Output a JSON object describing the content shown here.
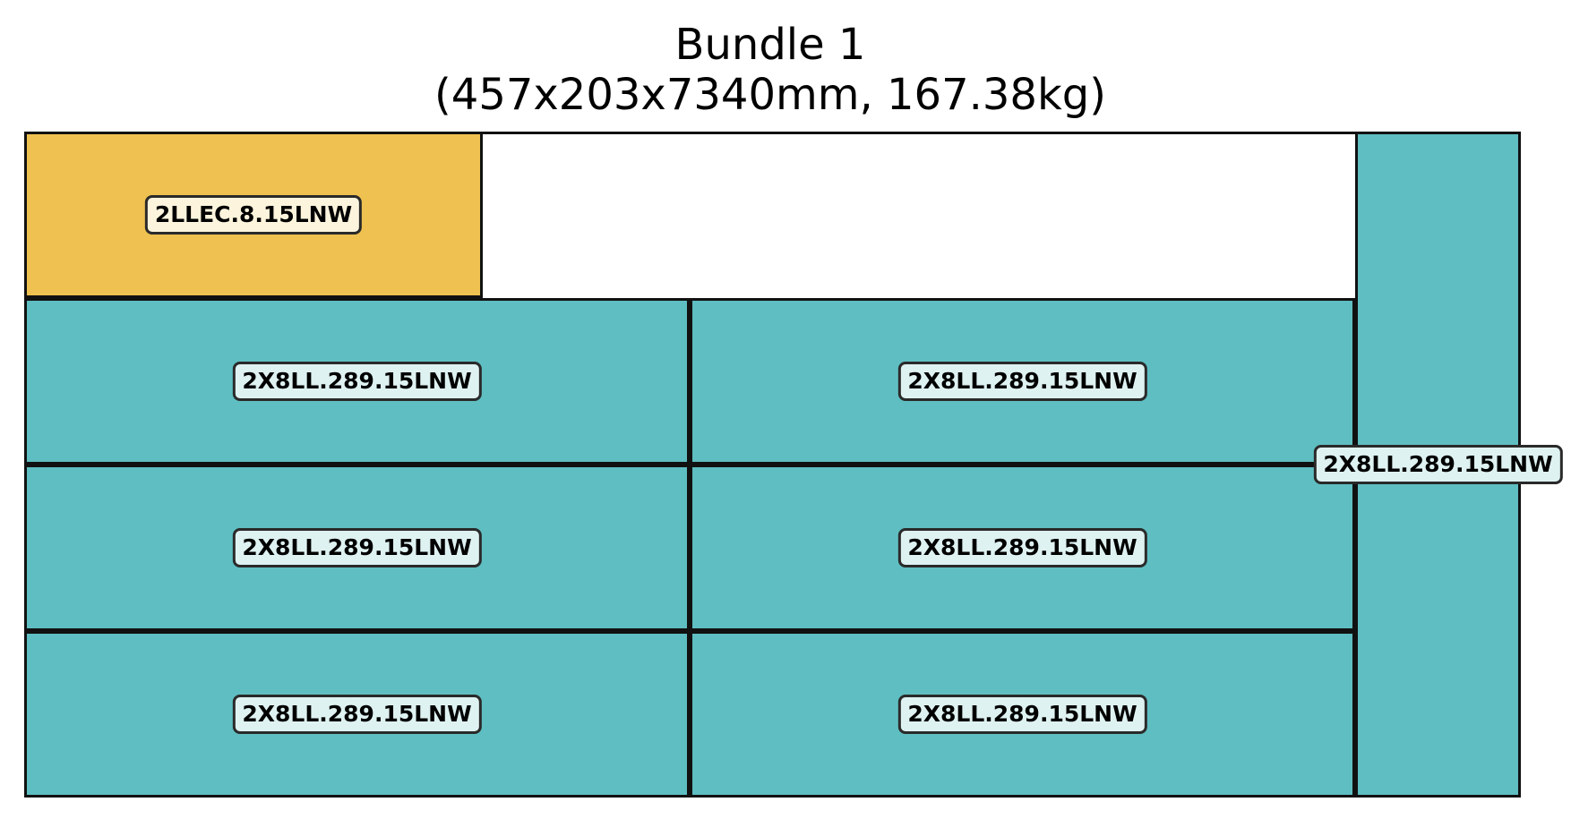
{
  "title": {
    "line1": "Bundle 1",
    "line2": "(457x203x7340mm, 167.38kg)"
  },
  "colors": {
    "teal": "#5fbec1",
    "gold": "#eec150",
    "empty": "#ffffff",
    "outline": "#111111",
    "label_bg_teal": "#dff2f2",
    "label_bg_gold": "#fcf4dc"
  },
  "pieces": [
    {
      "id": "piece-1",
      "label": "2LLEC.8.15LNW",
      "color": "gold"
    },
    {
      "id": "piece-2",
      "label": "2X8LL.289.15LNW",
      "color": "teal"
    },
    {
      "id": "piece-3",
      "label": "2X8LL.289.15LNW",
      "color": "teal"
    },
    {
      "id": "piece-4",
      "label": "2X8LL.289.15LNW",
      "color": "teal"
    },
    {
      "id": "piece-5",
      "label": "2X8LL.289.15LNW",
      "color": "teal"
    },
    {
      "id": "piece-6",
      "label": "2X8LL.289.15LNW",
      "color": "teal"
    },
    {
      "id": "piece-7",
      "label": "2X8LL.289.15LNW",
      "color": "teal"
    },
    {
      "id": "piece-8",
      "label": "2X8LL.289.15LNW",
      "color": "teal"
    }
  ]
}
